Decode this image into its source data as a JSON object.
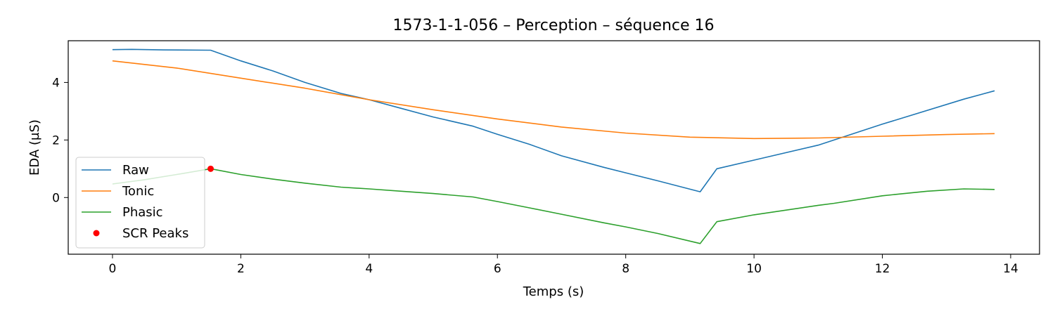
{
  "chart_data": {
    "type": "line",
    "title": "1573-1-1-056 – Perception – séquence 16",
    "xlabel": "Temps (s)",
    "ylabel": "EDA (µS)",
    "xlim": [
      -0.69,
      14.45
    ],
    "ylim": [
      -1.97,
      5.45
    ],
    "xticks": [
      0,
      2,
      4,
      6,
      8,
      10,
      12,
      14
    ],
    "yticks": [
      0,
      2,
      4
    ],
    "grid": false,
    "legend_position": "lower-left",
    "series": [
      {
        "name": "Raw",
        "color": "#1f77b4",
        "x": [
          0,
          0.3,
          0.8,
          1.53,
          2.0,
          2.5,
          3.0,
          3.56,
          4.0,
          4.5,
          5.0,
          5.62,
          6.0,
          6.5,
          7.0,
          7.66,
          8.0,
          8.5,
          9.16,
          9.42,
          10.0,
          11.0,
          11.25,
          12.0,
          13.27,
          13.75
        ],
        "y": [
          5.14,
          5.15,
          5.13,
          5.12,
          4.75,
          4.4,
          4.0,
          3.62,
          3.4,
          3.1,
          2.8,
          2.48,
          2.2,
          1.85,
          1.45,
          1.05,
          0.86,
          0.58,
          0.2,
          1.0,
          1.3,
          1.82,
          2.0,
          2.55,
          3.42,
          3.71
        ]
      },
      {
        "name": "Tonic",
        "color": "#ff7f0e",
        "x": [
          0,
          1,
          2,
          3,
          4,
          5,
          6,
          7,
          8,
          9,
          10,
          11,
          12,
          13,
          13.75
        ],
        "y": [
          4.75,
          4.5,
          4.15,
          3.8,
          3.4,
          3.05,
          2.73,
          2.45,
          2.24,
          2.1,
          2.05,
          2.07,
          2.13,
          2.19,
          2.22
        ]
      },
      {
        "name": "Phasic",
        "color": "#2ca02c",
        "x": [
          0,
          0.5,
          1.0,
          1.53,
          2.0,
          2.5,
          3.0,
          3.56,
          4.0,
          4.5,
          5.0,
          5.62,
          6.0,
          6.5,
          7.0,
          7.66,
          8.0,
          8.5,
          9.16,
          9.42,
          10.0,
          11.0,
          11.25,
          12.0,
          12.7,
          13.27,
          13.75
        ],
        "y": [
          0.47,
          0.62,
          0.8,
          1.0,
          0.8,
          0.64,
          0.5,
          0.36,
          0.3,
          0.22,
          0.14,
          0.02,
          -0.14,
          -0.36,
          -0.58,
          -0.88,
          -1.02,
          -1.25,
          -1.6,
          -0.84,
          -0.6,
          -0.27,
          -0.2,
          0.06,
          0.22,
          0.3,
          0.28
        ]
      }
    ],
    "scatter": [
      {
        "name": "SCR Peaks",
        "color": "#ff0000",
        "x": [
          1.53
        ],
        "y": [
          1.0
        ]
      }
    ]
  }
}
